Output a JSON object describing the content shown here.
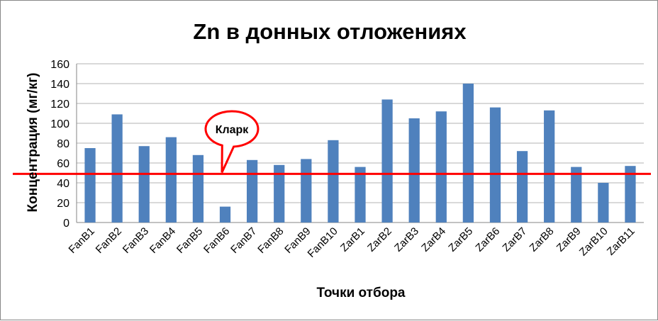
{
  "chart_data": {
    "type": "bar",
    "title": "Zn в донных отложениях",
    "xlabel": "Точки отбора",
    "ylabel": "Концентрация (мг/кг)",
    "ylim": [
      0,
      160
    ],
    "yticks": [
      0,
      20,
      40,
      60,
      80,
      100,
      120,
      140,
      160
    ],
    "grid": true,
    "legend": "none",
    "categories": [
      "FanB1",
      "FanB2",
      "FanB3",
      "FanB4",
      "FanB5",
      "FanB6",
      "FanB7",
      "FanB8",
      "FanB9",
      "FanB10",
      "ZarB1",
      "ZarB2",
      "ZarB3",
      "ZarB4",
      "ZarB5",
      "ZarB6",
      "ZarB7",
      "ZarB8",
      "ZarB9",
      "ZarB10",
      "ZarB11"
    ],
    "values": [
      75,
      109,
      77,
      86,
      68,
      16,
      63,
      58,
      64,
      83,
      56,
      124,
      105,
      112,
      140,
      116,
      72,
      113,
      56,
      40,
      57
    ],
    "bar_color": "#4F81BD",
    "reference_line": {
      "label": "Кларк",
      "value": 49,
      "color": "#FF0000"
    }
  }
}
